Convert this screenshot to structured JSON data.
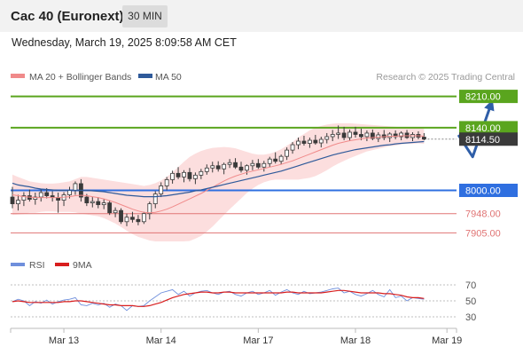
{
  "header": {
    "title": "Cac 40 (Euronext)",
    "interval": "30 MIN",
    "datetime": "Wednesday, March 19, 2025 8:09:58 AM CET"
  },
  "legend": {
    "ma20": "MA 20 + Bollinger Bands",
    "ma50": "MA 50",
    "credit": "Research © 2025 Trading Central",
    "rsi": "RSI",
    "ma9": "9MA"
  },
  "colors": {
    "candle": "#3a3a3a",
    "ma20": "#f08a8a",
    "ma20_band": "#fbd3d3",
    "ma50": "#2f5a9a",
    "green_level": "#5aa51e",
    "blue_level": "#2f6fe0",
    "red_level": "#e07575",
    "forecast_arrow": "#2f5ea8",
    "rsi": "#6f8fdc",
    "rsi_ma": "#d81e1e",
    "current_price_bg": "#3a3a3a"
  },
  "chart_data": {
    "type": "candlestick",
    "price_axis": {
      "ylim": [
        7880,
        8235
      ]
    },
    "x_axis": {
      "tick_labels": [
        "Mar 13",
        "Mar 14",
        "Mar 17",
        "Mar 18",
        "Mar 19"
      ],
      "tick_indices": [
        9,
        26,
        43,
        60,
        76
      ]
    },
    "levels": [
      {
        "value": 8210.0,
        "label": "8210.00",
        "color": "green",
        "style": "solid"
      },
      {
        "value": 8140.0,
        "label": "8140.00",
        "color": "green",
        "style": "solid"
      },
      {
        "value": 8000.0,
        "label": "8000.00",
        "color": "blue",
        "style": "solid"
      },
      {
        "value": 7948.0,
        "label": "7948.00",
        "color": "red",
        "style": "solid"
      },
      {
        "value": 7905.0,
        "label": "7905.00",
        "color": "red",
        "style": "solid"
      }
    ],
    "current_price": {
      "value": 8114.5,
      "label": "8114.50"
    },
    "forecast_arrow": [
      {
        "index": 78,
        "value": 8124
      },
      {
        "index": 80.5,
        "value": 8075
      },
      {
        "index": 84,
        "value": 8203
      }
    ],
    "candles": [
      [
        7985,
        8008,
        7960,
        7970
      ],
      [
        7970,
        7990,
        7955,
        7978
      ],
      [
        7978,
        7996,
        7965,
        7988
      ],
      [
        7988,
        8002,
        7975,
        7980
      ],
      [
        7980,
        7995,
        7968,
        7985
      ],
      [
        7985,
        8003,
        7975,
        7995
      ],
      [
        7995,
        8005,
        7982,
        7988
      ],
      [
        7988,
        7998,
        7975,
        7984
      ],
      [
        7984,
        7995,
        7950,
        7978
      ],
      [
        7978,
        7996,
        7965,
        7990
      ],
      [
        7990,
        8008,
        7982,
        8000
      ],
      [
        8000,
        8020,
        7990,
        8015
      ],
      [
        8015,
        8025,
        7975,
        7985
      ],
      [
        7985,
        7992,
        7965,
        7972
      ],
      [
        7972,
        7985,
        7962,
        7975
      ],
      [
        7975,
        7985,
        7960,
        7968
      ],
      [
        7968,
        7980,
        7958,
        7972
      ],
      [
        7972,
        7978,
        7945,
        7950
      ],
      [
        7950,
        7962,
        7940,
        7955
      ],
      [
        7955,
        7960,
        7925,
        7930
      ],
      [
        7930,
        7948,
        7920,
        7940
      ],
      [
        7940,
        7952,
        7928,
        7935
      ],
      [
        7935,
        7945,
        7922,
        7930
      ],
      [
        7930,
        7952,
        7925,
        7948
      ],
      [
        7948,
        7975,
        7935,
        7970
      ],
      [
        7970,
        7998,
        7960,
        7992
      ],
      [
        7992,
        8018,
        7985,
        8010
      ],
      [
        8010,
        8030,
        8000,
        8024
      ],
      [
        8024,
        8044,
        8015,
        8038
      ],
      [
        8038,
        8052,
        8025,
        8030
      ],
      [
        8030,
        8045,
        8018,
        8040
      ],
      [
        8040,
        8050,
        8020,
        8026
      ],
      [
        8026,
        8040,
        8014,
        8034
      ],
      [
        8034,
        8048,
        8025,
        8042
      ],
      [
        8042,
        8058,
        8035,
        8050
      ],
      [
        8050,
        8064,
        8040,
        8055
      ],
      [
        8055,
        8065,
        8042,
        8048
      ],
      [
        8048,
        8062,
        8036,
        8058
      ],
      [
        8058,
        8070,
        8050,
        8062
      ],
      [
        8062,
        8072,
        8048,
        8052
      ],
      [
        8052,
        8064,
        8040,
        8045
      ],
      [
        8045,
        8058,
        8035,
        8055
      ],
      [
        8055,
        8068,
        8045,
        8060
      ],
      [
        8060,
        8070,
        8048,
        8052
      ],
      [
        8052,
        8066,
        8042,
        8060
      ],
      [
        8060,
        8075,
        8052,
        8070
      ],
      [
        8070,
        8085,
        8060,
        8065
      ],
      [
        8065,
        8080,
        8058,
        8076
      ],
      [
        8076,
        8096,
        8068,
        8090
      ],
      [
        8090,
        8108,
        8082,
        8102
      ],
      [
        8102,
        8118,
        8092,
        8110
      ],
      [
        8110,
        8122,
        8100,
        8105
      ],
      [
        8105,
        8118,
        8095,
        8112
      ],
      [
        8112,
        8124,
        8102,
        8106
      ],
      [
        8106,
        8120,
        8096,
        8114
      ],
      [
        8114,
        8128,
        8105,
        8120
      ],
      [
        8120,
        8135,
        8110,
        8125
      ],
      [
        8125,
        8145,
        8115,
        8128
      ],
      [
        8128,
        8142,
        8112,
        8118
      ],
      [
        8118,
        8136,
        8110,
        8130
      ],
      [
        8130,
        8142,
        8118,
        8125
      ],
      [
        8125,
        8138,
        8112,
        8120
      ],
      [
        8120,
        8134,
        8110,
        8128
      ],
      [
        8128,
        8136,
        8112,
        8116
      ],
      [
        8116,
        8130,
        8108,
        8124
      ],
      [
        8124,
        8135,
        8112,
        8118
      ],
      [
        8118,
        8130,
        8108,
        8126
      ],
      [
        8126,
        8134,
        8114,
        8120
      ],
      [
        8120,
        8132,
        8112,
        8128
      ],
      [
        8128,
        8135,
        8115,
        8118
      ],
      [
        8118,
        8130,
        8110,
        8125
      ],
      [
        8125,
        8132,
        8114,
        8119
      ],
      [
        8119,
        8128,
        8112,
        8114.5
      ]
    ],
    "ma20": [
      7990,
      7988,
      7986,
      7985,
      7984,
      7984,
      7984,
      7984,
      7984,
      7985,
      7986,
      7988,
      7989,
      7988,
      7986,
      7984,
      7981,
      7977,
      7973,
      7968,
      7963,
      7958,
      7954,
      7951,
      7950,
      7951,
      7954,
      7958,
      7963,
      7969,
      7975,
      7981,
      7987,
      7993,
      8000,
      8007,
      8014,
      8021,
      8027,
      8032,
      8036,
      8040,
      8043,
      8046,
      8049,
      8052,
      8055,
      8058,
      8062,
      8066,
      8071,
      8076,
      8081,
      8086,
      8091,
      8096,
      8101,
      8105,
      8108,
      8111,
      8113,
      8115,
      8117,
      8118,
      8119,
      8120,
      8121,
      8121,
      8122,
      8122,
      8122,
      8122,
      8121
    ],
    "bb_upper": [
      8035,
      8030,
      8025,
      8020,
      8018,
      8016,
      8015,
      8015,
      8016,
      8018,
      8020,
      8025,
      8030,
      8030,
      8028,
      8026,
      8024,
      8022,
      8020,
      8018,
      8016,
      8014,
      8012,
      8010,
      8012,
      8016,
      8022,
      8030,
      8040,
      8052,
      8064,
      8075,
      8082,
      8088,
      8092,
      8095,
      8096,
      8097,
      8096,
      8094,
      8090,
      8086,
      8082,
      8080,
      8080,
      8082,
      8086,
      8092,
      8100,
      8108,
      8118,
      8126,
      8134,
      8140,
      8144,
      8147,
      8149,
      8150,
      8150,
      8150,
      8149,
      8148,
      8147,
      8146,
      8145,
      8144,
      8143,
      8142,
      8141,
      8140,
      8140,
      8139,
      8138
    ],
    "bb_lower": [
      7945,
      7946,
      7947,
      7950,
      7950,
      7952,
      7953,
      7953,
      7952,
      7952,
      7952,
      7951,
      7948,
      7946,
      7944,
      7942,
      7938,
      7932,
      7926,
      7918,
      7910,
      7902,
      7896,
      7892,
      7888,
      7886,
      7886,
      7886,
      7886,
      7886,
      7886,
      7887,
      7892,
      7898,
      7908,
      7919,
      7932,
      7945,
      7958,
      7970,
      7982,
      7994,
      8004,
      8012,
      8018,
      8022,
      8024,
      8024,
      8024,
      8024,
      8024,
      8026,
      8028,
      8032,
      8038,
      8045,
      8053,
      8060,
      8066,
      8072,
      8077,
      8082,
      8087,
      8090,
      8093,
      8096,
      8099,
      8100,
      8103,
      8104,
      8104,
      8105,
      8104
    ],
    "ma50": [
      8016,
      8012,
      8010,
      8008,
      8005,
      8003,
      8002,
      8001,
      8000,
      8000,
      8000,
      8000,
      8000,
      8000,
      7999,
      7998,
      7997,
      7995,
      7993,
      7991,
      7989,
      7988,
      7987,
      7986,
      7986,
      7986,
      7987,
      7988,
      7990,
      7992,
      7994,
      7996,
      7999,
      8001,
      8004,
      8007,
      8010,
      8013,
      8016,
      8019,
      8022,
      8025,
      8028,
      8031,
      8034,
      8037,
      8040,
      8043,
      8047,
      8051,
      8055,
      8059,
      8063,
      8067,
      8071,
      8075,
      8079,
      8082,
      8085,
      8088,
      8091,
      8093,
      8095,
      8097,
      8099,
      8101,
      8102,
      8104,
      8105,
      8106,
      8107,
      8108,
      8109
    ],
    "rsi": {
      "ylim": [
        20,
        80
      ],
      "ticks": [
        70,
        50,
        30
      ],
      "rsi_values": [
        49,
        52,
        50,
        44,
        49,
        47,
        51,
        46,
        49,
        51,
        52,
        54,
        45,
        44,
        47,
        45,
        47,
        42,
        46,
        44,
        38,
        44,
        43,
        44,
        50,
        55,
        60,
        62,
        64,
        58,
        62,
        56,
        60,
        62,
        63,
        60,
        58,
        61,
        62,
        58,
        56,
        60,
        62,
        58,
        60,
        63,
        57,
        61,
        64,
        60,
        58,
        62,
        59,
        60,
        61,
        63,
        65,
        66,
        60,
        62,
        58,
        56,
        59,
        63,
        58,
        55,
        64,
        54,
        56,
        50,
        54,
        53,
        52
      ],
      "ma_values": [
        49,
        50,
        49,
        48,
        48,
        48,
        48,
        48,
        48,
        49,
        49,
        50,
        50,
        49,
        48,
        47,
        46,
        45,
        45,
        44,
        44,
        44,
        43,
        43,
        44,
        46,
        48,
        51,
        54,
        56,
        58,
        59,
        60,
        61,
        61,
        60,
        60,
        61,
        61,
        60,
        60,
        60,
        60,
        60,
        60,
        60,
        60,
        60,
        61,
        61,
        60,
        60,
        60,
        60,
        60,
        61,
        62,
        63,
        63,
        62,
        61,
        60,
        60,
        60,
        60,
        59,
        59,
        58,
        57,
        55,
        54,
        54,
        53
      ]
    }
  }
}
